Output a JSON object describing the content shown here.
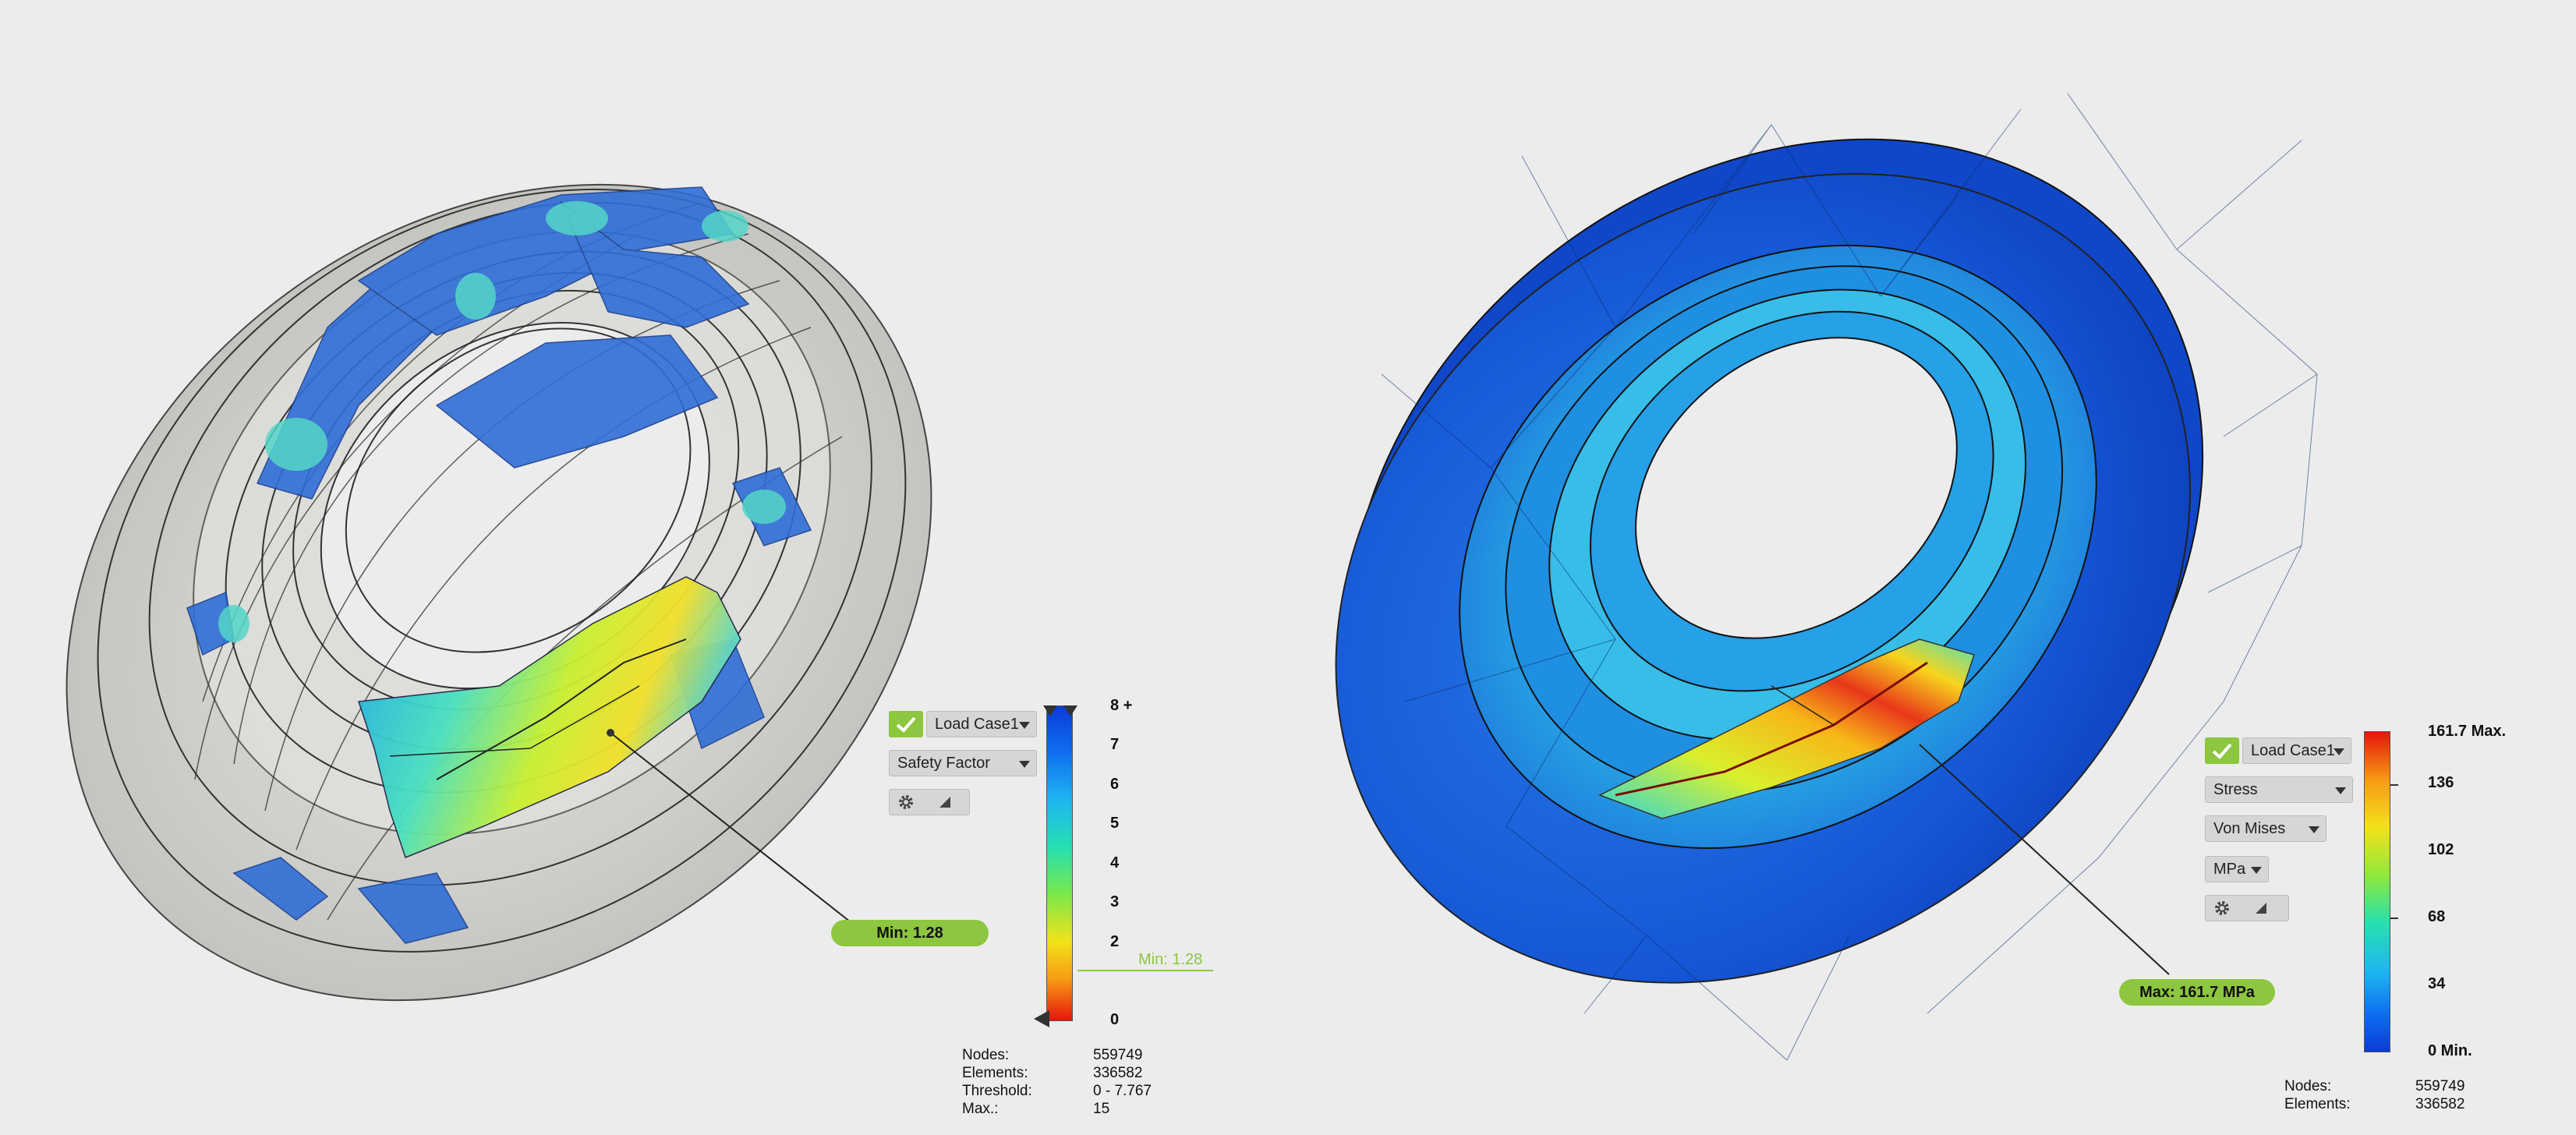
{
  "left_view": {
    "load_case": "Load Case1",
    "result_type": "Safety Factor",
    "legend": {
      "ticks": [
        "8 +",
        "7",
        "6",
        "5",
        "4",
        "3",
        "2",
        "0"
      ],
      "min_marker": "Min: 1.28"
    },
    "probe_badge": "Min: 1.28",
    "mesh_info": [
      {
        "key": "Nodes:",
        "value": "559749"
      },
      {
        "key": "Elements:",
        "value": "336582"
      },
      {
        "key": "Threshold:",
        "value": "0 - 7.767"
      },
      {
        "key": "Max.:",
        "value": "15"
      }
    ]
  },
  "right_view": {
    "load_case": "Load Case1",
    "result_type": "Stress",
    "stress_type": "Von Mises",
    "unit": "MPa",
    "legend": {
      "ticks": [
        "161.7 Max.",
        "136",
        "102",
        "68",
        "34",
        "0 Min."
      ]
    },
    "probe_badge": "Max: 161.7 MPa",
    "mesh_info": [
      {
        "key": "Nodes:",
        "value": "559749"
      },
      {
        "key": "Elements:",
        "value": "336582"
      }
    ]
  },
  "icons": {
    "check": "check-icon",
    "gear": "gear-icon",
    "resize": "resize-handle-icon",
    "dropdown": "chevron-down-icon"
  },
  "colors": {
    "accent": "#8dc63f",
    "panel_bg": "#d6d6d6",
    "background": "#ececec"
  }
}
